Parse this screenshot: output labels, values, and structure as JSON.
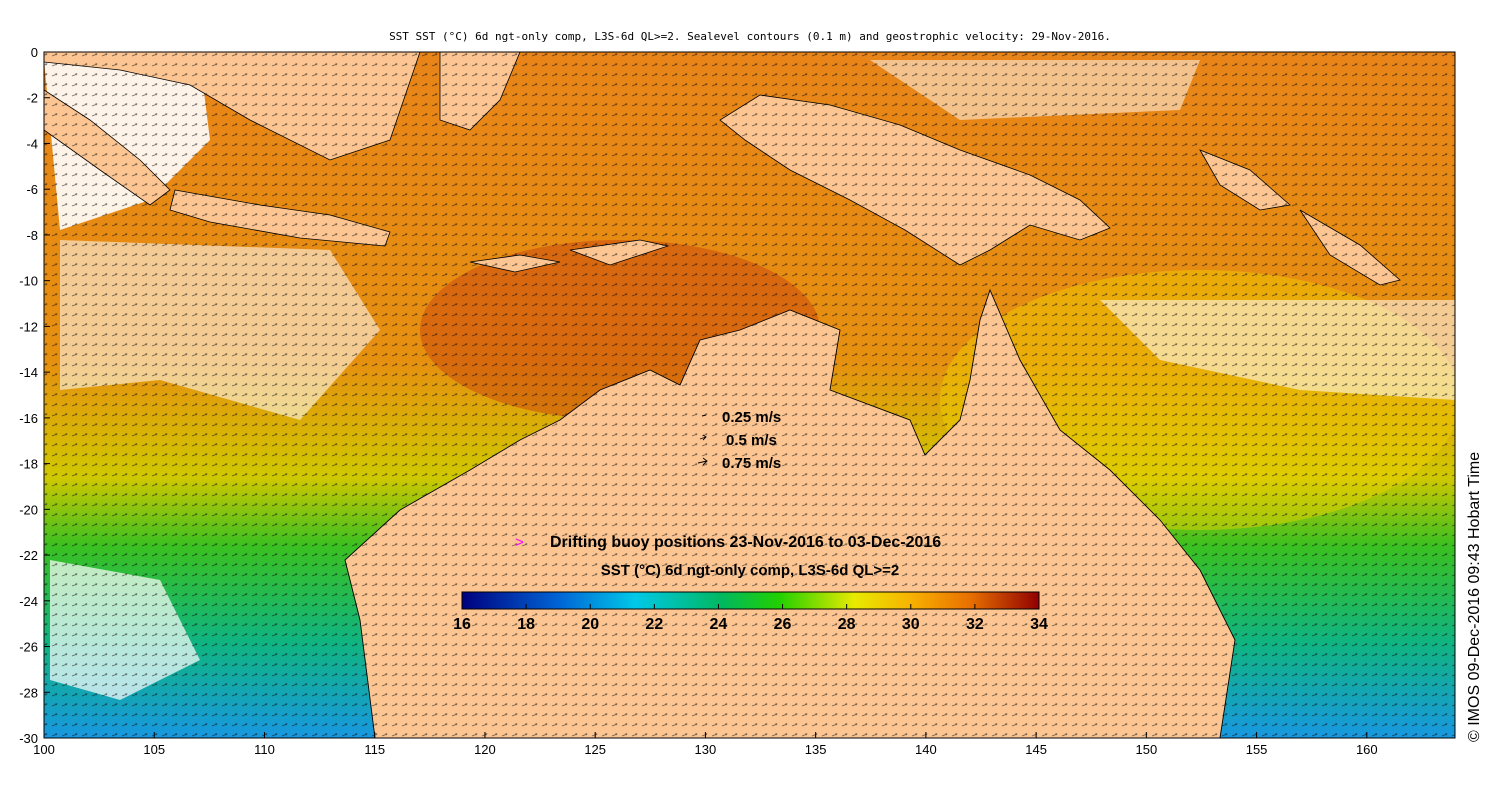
{
  "title": "SST SST (°C) 6d ngt-only comp, L3S-6d QL>=2. Sealevel contours (0.1 m) and geostrophic velocity: 29-Nov-2016.",
  "map": {
    "x_axis": {
      "ticks": [
        100,
        105,
        110,
        115,
        120,
        125,
        130,
        135,
        140,
        145,
        150,
        155,
        160
      ],
      "range": [
        100,
        164
      ]
    },
    "y_axis": {
      "ticks": [
        0,
        -2,
        -4,
        -6,
        -8,
        -10,
        -12,
        -14,
        -16,
        -18,
        -20,
        -22,
        -24,
        -26,
        -28,
        -30
      ],
      "range": [
        -30,
        0
      ]
    }
  },
  "velocity_legend": [
    "0.25 m/s",
    "0.5 m/s",
    "0.75 m/s"
  ],
  "buoy_legend": {
    "symbol": ">",
    "label": "Drifting buoy positions 23-Nov-2016 to 03-Dec-2016"
  },
  "colorbar": {
    "title": "SST (°C) 6d ngt-only comp, L3S-6d QL>=2",
    "ticks": [
      "16",
      "18",
      "20",
      "22",
      "24",
      "26",
      "28",
      "30",
      "32",
      "34"
    ],
    "range": [
      16,
      34
    ]
  },
  "copyright": "© IMOS 09-Dec-2016 09:43 Hobart Time",
  "colors": {
    "land": "#fcc592",
    "no_data": "#ffffff",
    "buoy_symbol": "#ff00ff"
  }
}
